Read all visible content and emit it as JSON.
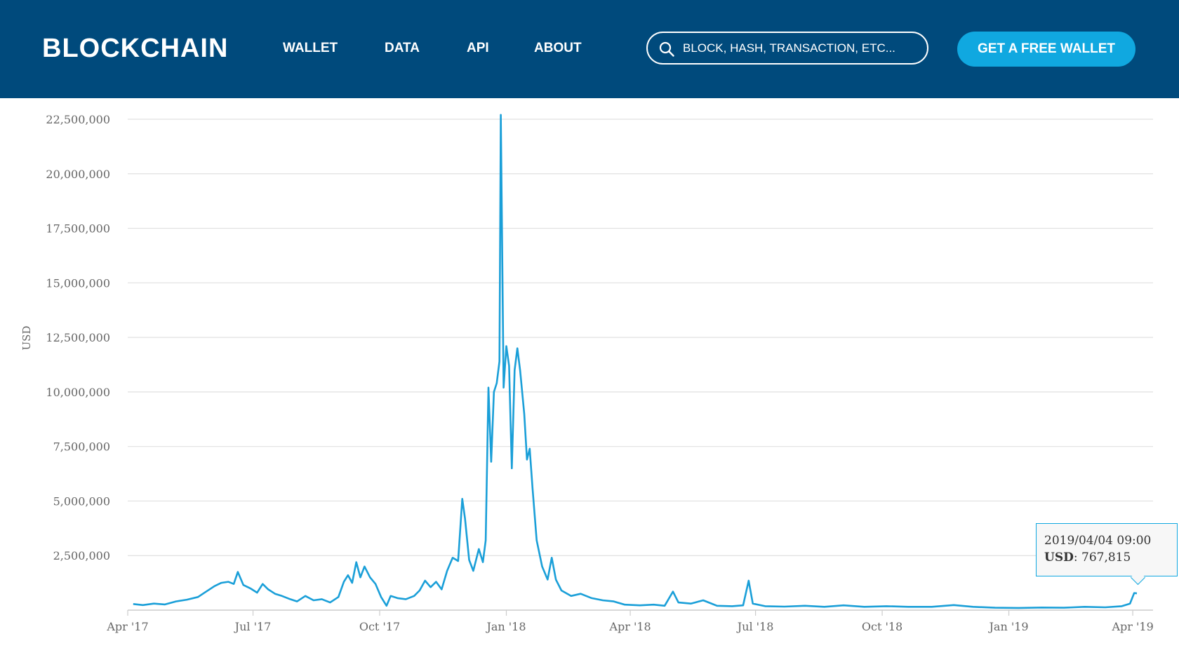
{
  "header": {
    "logo": "BLOCKCHAIN",
    "nav": [
      "WALLET",
      "DATA",
      "API",
      "ABOUT"
    ],
    "search_placeholder": "BLOCK, HASH, TRANSACTION, ETC...",
    "cta_label": "GET A FREE WALLET",
    "colors": {
      "background": "#004a7c",
      "cta": "#10a8e0",
      "text": "#ffffff"
    }
  },
  "chart_data": {
    "type": "line",
    "title": "",
    "xlabel": "",
    "ylabel": "USD",
    "ylim": [
      0,
      22500000
    ],
    "yticks": [
      2500000,
      5000000,
      7500000,
      10000000,
      12500000,
      15000000,
      17500000,
      20000000,
      22500000
    ],
    "ytick_labels": [
      "2,500,000",
      "5,000,000",
      "7,500,000",
      "10,000,000",
      "12,500,000",
      "15,000,000",
      "17,500,000",
      "20,000,000",
      "22,500,000"
    ],
    "xlim": [
      "2017-04-01",
      "2019-04-04"
    ],
    "xticks": [
      "2017-04-01",
      "2017-07-01",
      "2017-10-01",
      "2018-01-01",
      "2018-04-01",
      "2018-07-01",
      "2018-10-01",
      "2019-01-01",
      "2019-04-01"
    ],
    "xtick_labels": [
      "Apr '17",
      "Jul '17",
      "Oct '17",
      "Jan '18",
      "Apr '18",
      "Jul '18",
      "Oct '18",
      "Jan '19",
      "Apr '19"
    ],
    "grid": "horizontal",
    "line_color": "#1a9fd8",
    "series": [
      {
        "points": [
          [
            "2017-04-05",
            280000
          ],
          [
            "2017-04-12",
            230000
          ],
          [
            "2017-04-20",
            300000
          ],
          [
            "2017-04-28",
            260000
          ],
          [
            "2017-05-06",
            400000
          ],
          [
            "2017-05-14",
            480000
          ],
          [
            "2017-05-22",
            600000
          ],
          [
            "2017-05-28",
            850000
          ],
          [
            "2017-06-03",
            1100000
          ],
          [
            "2017-06-08",
            1250000
          ],
          [
            "2017-06-13",
            1300000
          ],
          [
            "2017-06-17",
            1200000
          ],
          [
            "2017-06-20",
            1750000
          ],
          [
            "2017-06-24",
            1150000
          ],
          [
            "2017-06-29",
            1000000
          ],
          [
            "2017-07-04",
            800000
          ],
          [
            "2017-07-08",
            1200000
          ],
          [
            "2017-07-12",
            950000
          ],
          [
            "2017-07-17",
            750000
          ],
          [
            "2017-07-22",
            650000
          ],
          [
            "2017-07-28",
            500000
          ],
          [
            "2017-08-02",
            400000
          ],
          [
            "2017-08-08",
            650000
          ],
          [
            "2017-08-14",
            450000
          ],
          [
            "2017-08-20",
            500000
          ],
          [
            "2017-08-26",
            350000
          ],
          [
            "2017-09-01",
            600000
          ],
          [
            "2017-09-05",
            1300000
          ],
          [
            "2017-09-08",
            1600000
          ],
          [
            "2017-09-11",
            1250000
          ],
          [
            "2017-09-14",
            2200000
          ],
          [
            "2017-09-17",
            1500000
          ],
          [
            "2017-09-20",
            2000000
          ],
          [
            "2017-09-24",
            1500000
          ],
          [
            "2017-09-28",
            1200000
          ],
          [
            "2017-10-02",
            600000
          ],
          [
            "2017-10-06",
            200000
          ],
          [
            "2017-10-09",
            650000
          ],
          [
            "2017-10-14",
            550000
          ],
          [
            "2017-10-20",
            500000
          ],
          [
            "2017-10-26",
            650000
          ],
          [
            "2017-10-30",
            900000
          ],
          [
            "2017-11-03",
            1350000
          ],
          [
            "2017-11-07",
            1050000
          ],
          [
            "2017-11-11",
            1300000
          ],
          [
            "2017-11-15",
            950000
          ],
          [
            "2017-11-19",
            1800000
          ],
          [
            "2017-11-23",
            2400000
          ],
          [
            "2017-11-27",
            2250000
          ],
          [
            "2017-11-30",
            5100000
          ],
          [
            "2017-12-02",
            4200000
          ],
          [
            "2017-12-05",
            2300000
          ],
          [
            "2017-12-08",
            1800000
          ],
          [
            "2017-12-12",
            2800000
          ],
          [
            "2017-12-15",
            2200000
          ],
          [
            "2017-12-17",
            3200000
          ],
          [
            "2017-12-19",
            10200000
          ],
          [
            "2017-12-21",
            6800000
          ],
          [
            "2017-12-23",
            10000000
          ],
          [
            "2017-12-25",
            10400000
          ],
          [
            "2017-12-27",
            11400000
          ],
          [
            "2017-12-28",
            22700000
          ],
          [
            "2017-12-30",
            10200000
          ],
          [
            "2018-01-01",
            12100000
          ],
          [
            "2018-01-03",
            11200000
          ],
          [
            "2018-01-05",
            6500000
          ],
          [
            "2018-01-07",
            11000000
          ],
          [
            "2018-01-09",
            12000000
          ],
          [
            "2018-01-11",
            11000000
          ],
          [
            "2018-01-14",
            9000000
          ],
          [
            "2018-01-16",
            6900000
          ],
          [
            "2018-01-18",
            7400000
          ],
          [
            "2018-01-20",
            5600000
          ],
          [
            "2018-01-23",
            3200000
          ],
          [
            "2018-01-27",
            2000000
          ],
          [
            "2018-01-31",
            1400000
          ],
          [
            "2018-02-03",
            2400000
          ],
          [
            "2018-02-06",
            1400000
          ],
          [
            "2018-02-10",
            900000
          ],
          [
            "2018-02-17",
            650000
          ],
          [
            "2018-02-24",
            750000
          ],
          [
            "2018-03-04",
            550000
          ],
          [
            "2018-03-12",
            450000
          ],
          [
            "2018-03-20",
            400000
          ],
          [
            "2018-03-28",
            250000
          ],
          [
            "2018-04-08",
            220000
          ],
          [
            "2018-04-18",
            250000
          ],
          [
            "2018-04-26",
            200000
          ],
          [
            "2018-05-02",
            850000
          ],
          [
            "2018-05-06",
            350000
          ],
          [
            "2018-05-15",
            300000
          ],
          [
            "2018-05-24",
            450000
          ],
          [
            "2018-06-03",
            200000
          ],
          [
            "2018-06-14",
            180000
          ],
          [
            "2018-06-22",
            220000
          ],
          [
            "2018-06-26",
            1350000
          ],
          [
            "2018-06-29",
            300000
          ],
          [
            "2018-07-08",
            180000
          ],
          [
            "2018-07-22",
            160000
          ],
          [
            "2018-08-06",
            200000
          ],
          [
            "2018-08-20",
            150000
          ],
          [
            "2018-09-03",
            220000
          ],
          [
            "2018-09-18",
            150000
          ],
          [
            "2018-10-04",
            180000
          ],
          [
            "2018-10-20",
            150000
          ],
          [
            "2018-11-06",
            150000
          ],
          [
            "2018-11-22",
            230000
          ],
          [
            "2018-12-06",
            150000
          ],
          [
            "2018-12-22",
            110000
          ],
          [
            "2019-01-08",
            100000
          ],
          [
            "2019-01-25",
            120000
          ],
          [
            "2019-02-10",
            110000
          ],
          [
            "2019-02-25",
            150000
          ],
          [
            "2019-03-12",
            130000
          ],
          [
            "2019-03-24",
            180000
          ],
          [
            "2019-03-30",
            300000
          ],
          [
            "2019-04-02",
            780000
          ],
          [
            "2019-04-04",
            767815
          ]
        ]
      }
    ],
    "tooltip": {
      "date": "2019/04/04 09:00",
      "key": "USD",
      "value": "767,815"
    }
  }
}
